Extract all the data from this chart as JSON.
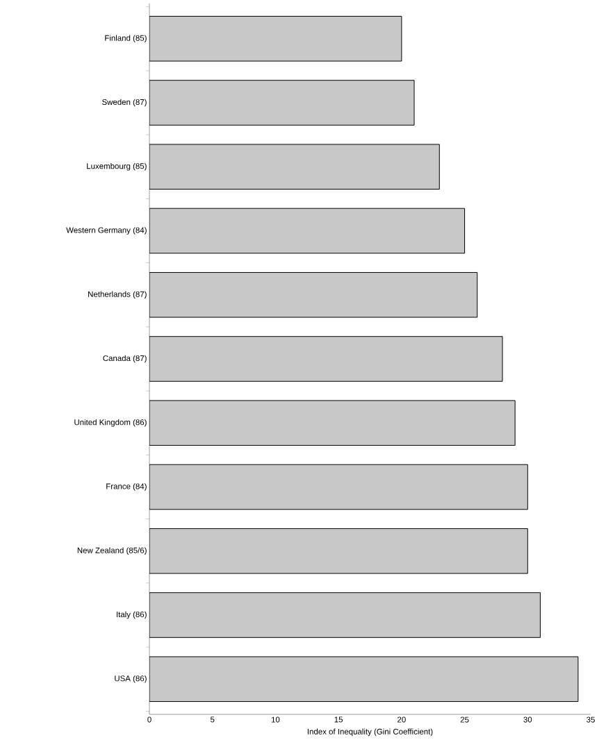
{
  "chart_data": {
    "type": "bar",
    "orientation": "horizontal",
    "xlabel": "Index of Inequality (Gini Coefficient)",
    "categories": [
      "Finland (85)",
      "Sweden (87)",
      "Luxembourg (85)",
      "Western Germany (84)",
      "Netherlands (87)",
      "Canada (87)",
      "United Kingdom (86)",
      "France (84)",
      "New Zealand (85/6)",
      "Italy (86)",
      "USA (86)"
    ],
    "values": [
      20,
      21,
      23,
      25,
      26,
      28,
      29,
      30,
      30,
      31,
      34
    ],
    "color": "#c8c8c8",
    "xlim": [
      0,
      35
    ],
    "xticks": [
      0,
      5,
      10,
      15,
      20,
      25,
      30,
      35
    ],
    "grid": false
  }
}
